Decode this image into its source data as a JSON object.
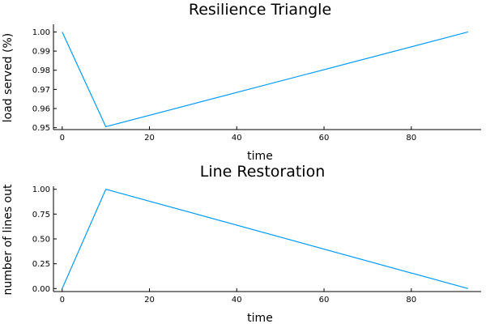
{
  "chart_data": [
    {
      "type": "line",
      "title": "Resilience Triangle",
      "xlabel": "time",
      "ylabel": "load served (%)",
      "xlim": [
        -2,
        96
      ],
      "ylim": [
        0.949,
        1.004
      ],
      "xticks": [
        0,
        20,
        40,
        60,
        80
      ],
      "xtick_labels": [
        "0",
        "20",
        "40",
        "60",
        "80"
      ],
      "yticks": [
        0.95,
        0.96,
        0.97,
        0.98,
        0.99,
        1.0
      ],
      "ytick_labels": [
        "0.95",
        "0.96",
        "0.97",
        "0.98",
        "0.99",
        "1.00"
      ],
      "grid": false,
      "legend": "none",
      "series": [
        {
          "x": [
            0,
            10,
            93
          ],
          "y": [
            1.0,
            0.9505,
            1.0
          ],
          "color": "#009AFA"
        }
      ]
    },
    {
      "type": "line",
      "title": "Line Restoration",
      "xlabel": "time",
      "ylabel": "number of lines out",
      "xlim": [
        -2,
        96
      ],
      "ylim": [
        -0.03,
        1.03
      ],
      "xticks": [
        0,
        20,
        40,
        60,
        80
      ],
      "xtick_labels": [
        "0",
        "20",
        "40",
        "60",
        "80"
      ],
      "yticks": [
        0.0,
        0.25,
        0.5,
        0.75,
        1.0
      ],
      "ytick_labels": [
        "0.00",
        "0.25",
        "0.50",
        "0.75",
        "1.00"
      ],
      "grid": false,
      "legend": "none",
      "series": [
        {
          "x": [
            0,
            10,
            93
          ],
          "y": [
            0.0,
            1.0,
            0.0
          ],
          "color": "#009AFA"
        }
      ]
    }
  ]
}
